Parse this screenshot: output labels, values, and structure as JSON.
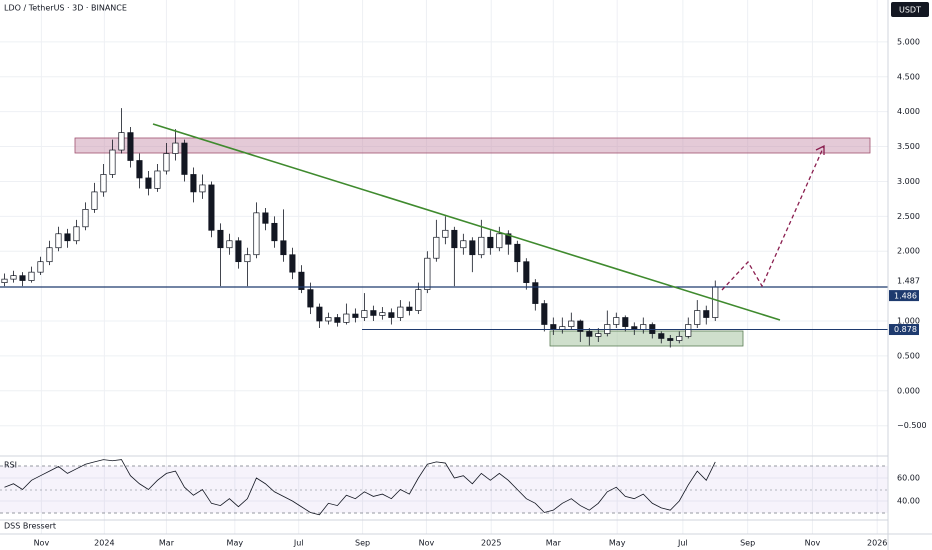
{
  "chart_data": {
    "type": "candlestick",
    "title": "LDO / TetherUS · 3D · BINANCE",
    "currency": "USDT",
    "up_color": "#ffffff",
    "down_color": "#131722",
    "open": [
      1.55,
      1.6,
      1.65,
      1.58,
      1.7,
      1.85,
      2.05,
      2.25,
      2.15,
      2.35,
      2.6,
      2.85,
      3.1,
      3.45,
      3.7,
      3.3,
      3.05,
      2.9,
      3.15,
      3.4,
      3.55,
      3.1,
      2.85,
      2.95,
      2.3,
      2.05,
      2.15,
      1.85,
      1.95,
      2.55,
      2.4,
      2.15,
      1.95,
      1.7,
      1.45,
      1.2,
      1.0,
      1.05,
      0.98,
      1.1,
      1.05,
      1.15,
      1.08,
      1.12,
      1.05,
      1.2,
      1.15,
      1.45,
      1.9,
      2.2,
      2.3,
      2.05,
      2.15,
      1.95,
      2.2,
      2.05,
      2.25,
      2.1,
      1.85,
      1.55,
      1.25,
      0.95,
      0.88,
      0.92,
      1.0,
      0.85,
      0.78,
      0.82,
      0.95,
      1.05,
      0.92,
      0.88,
      0.95,
      0.82,
      0.75,
      0.72,
      0.78,
      0.95,
      1.15,
      1.05
    ],
    "high": [
      1.68,
      1.72,
      1.7,
      1.78,
      1.92,
      2.15,
      2.35,
      2.32,
      2.45,
      2.7,
      2.98,
      3.25,
      3.6,
      4.05,
      3.78,
      3.4,
      3.15,
      3.25,
      3.55,
      3.75,
      3.6,
      3.2,
      3.1,
      3.0,
      2.4,
      2.25,
      2.2,
      2.05,
      2.7,
      2.62,
      2.5,
      2.6,
      2.05,
      1.8,
      1.55,
      1.25,
      1.12,
      1.1,
      1.25,
      1.18,
      1.4,
      1.22,
      1.2,
      1.18,
      1.3,
      1.28,
      1.55,
      2.0,
      2.45,
      2.5,
      2.35,
      2.25,
      2.2,
      2.45,
      2.3,
      2.35,
      2.3,
      2.15,
      1.9,
      1.6,
      1.3,
      1.05,
      1.05,
      1.12,
      1.02,
      0.9,
      0.9,
      1.15,
      1.12,
      1.08,
      0.98,
      1.05,
      0.98,
      0.85,
      0.8,
      0.85,
      1.05,
      1.3,
      1.22,
      1.58
    ],
    "low": [
      1.5,
      1.55,
      1.5,
      1.55,
      1.66,
      1.8,
      2.0,
      2.05,
      2.1,
      2.3,
      2.55,
      2.78,
      3.05,
      3.4,
      3.2,
      2.9,
      2.8,
      2.85,
      3.1,
      3.3,
      3.0,
      2.7,
      2.75,
      2.2,
      1.5,
      1.95,
      1.75,
      1.5,
      1.9,
      2.3,
      2.05,
      1.85,
      1.6,
      1.4,
      1.1,
      0.9,
      0.95,
      0.92,
      0.95,
      0.98,
      1.0,
      1.0,
      1.02,
      0.95,
      1.0,
      1.08,
      1.1,
      1.4,
      1.85,
      2.1,
      1.5,
      1.95,
      1.7,
      1.9,
      1.95,
      2.0,
      1.95,
      1.7,
      1.45,
      1.15,
      0.85,
      0.8,
      0.82,
      0.88,
      0.7,
      0.65,
      0.7,
      0.78,
      0.9,
      0.85,
      0.8,
      0.82,
      0.75,
      0.68,
      0.62,
      0.68,
      0.75,
      0.9,
      0.95,
      1.0
    ],
    "close": [
      1.6,
      1.65,
      1.58,
      1.7,
      1.85,
      2.05,
      2.25,
      2.15,
      2.35,
      2.6,
      2.85,
      3.1,
      3.45,
      3.7,
      3.3,
      3.05,
      2.9,
      3.15,
      3.4,
      3.55,
      3.1,
      2.85,
      2.95,
      2.3,
      2.05,
      2.15,
      1.85,
      1.95,
      2.55,
      2.4,
      2.15,
      1.95,
      1.7,
      1.45,
      1.2,
      1.0,
      1.05,
      0.98,
      1.1,
      1.05,
      1.15,
      1.08,
      1.12,
      1.05,
      1.2,
      1.15,
      1.45,
      1.9,
      2.2,
      2.3,
      2.05,
      2.15,
      1.95,
      2.2,
      2.05,
      2.25,
      2.1,
      1.85,
      1.55,
      1.25,
      0.95,
      0.88,
      0.92,
      1.0,
      0.85,
      0.78,
      0.82,
      0.95,
      1.05,
      0.92,
      0.88,
      0.95,
      0.82,
      0.75,
      0.72,
      0.78,
      0.95,
      1.15,
      1.05,
      1.49
    ],
    "ylim": [
      -0.92,
      5.6
    ],
    "yticks": [
      {
        "value": -0.5,
        "label": "−0.500"
      },
      {
        "value": 0,
        "label": "0.000"
      },
      {
        "value": 0.5,
        "label": "0.500"
      },
      {
        "value": 1,
        "label": "1.000"
      },
      {
        "value": 2,
        "label": "2.000"
      },
      {
        "value": 2.5,
        "label": "2.500"
      },
      {
        "value": 3,
        "label": "3.000"
      },
      {
        "value": 3.5,
        "label": "3.500"
      },
      {
        "value": 4,
        "label": "4.000"
      },
      {
        "value": 4.5,
        "label": "4.500"
      },
      {
        "value": 5,
        "label": "5.000"
      }
    ],
    "xlim": [
      -0.5,
      98.2
    ],
    "xticks": [
      {
        "value": 4.1,
        "label": "Nov"
      },
      {
        "value": 11.1,
        "label": "2024"
      },
      {
        "value": 18,
        "label": "Mar"
      },
      {
        "value": 25.6,
        "label": "May"
      },
      {
        "value": 32.7,
        "label": "Jul"
      },
      {
        "value": 39.8,
        "label": "Sep"
      },
      {
        "value": 46.9,
        "label": "Nov"
      },
      {
        "value": 54.1,
        "label": "2025"
      },
      {
        "value": 61,
        "label": "Mar"
      },
      {
        "value": 68.1,
        "label": "May"
      },
      {
        "value": 75.4,
        "label": "Jul"
      },
      {
        "value": 82.6,
        "label": "Sep"
      },
      {
        "value": 89.8,
        "label": "Nov"
      },
      {
        "value": 97,
        "label": "2026"
      }
    ],
    "price_lines": [
      {
        "value": 1.487,
        "label": "1.487"
      },
      {
        "value": 1.486,
        "label": "1.486"
      },
      {
        "value": 0.878,
        "label": "0.878"
      }
    ],
    "rsi": {
      "title": "RSI",
      "color": "#7e57c2",
      "values": [
        52,
        55,
        50,
        58,
        62,
        66,
        70,
        64,
        68,
        72,
        74,
        76,
        75,
        76,
        62,
        55,
        50,
        58,
        64,
        66,
        52,
        45,
        50,
        38,
        36,
        42,
        35,
        42,
        60,
        55,
        48,
        44,
        40,
        35,
        30,
        28,
        38,
        36,
        45,
        42,
        48,
        44,
        46,
        42,
        50,
        46,
        60,
        72,
        74,
        73,
        60,
        62,
        55,
        64,
        58,
        64,
        58,
        50,
        42,
        38,
        30,
        32,
        38,
        42,
        36,
        32,
        38,
        48,
        52,
        44,
        42,
        46,
        38,
        34,
        32,
        40,
        54,
        66,
        58,
        74
      ],
      "ylim": [
        25.2,
        77.4
      ],
      "yticks": [
        {
          "value": 40,
          "label": "40.00"
        },
        {
          "value": 60,
          "label": "60.00"
        }
      ]
    },
    "footer": "DSS Bressert"
  }
}
